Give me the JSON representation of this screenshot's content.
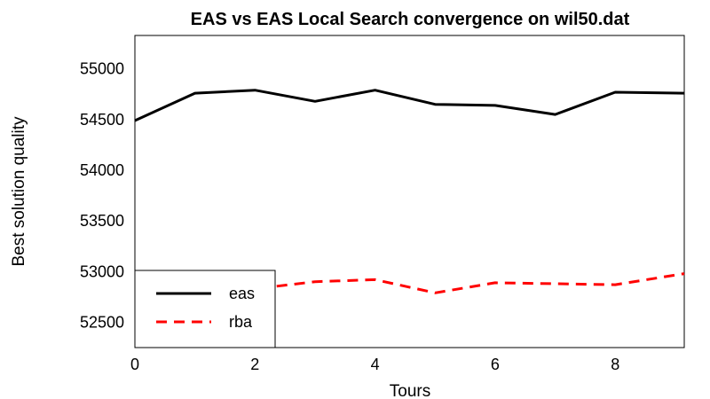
{
  "chart_data": {
    "type": "line",
    "title": "EAS vs EAS Local Search convergence on wil50.dat",
    "xlabel": "Tours",
    "ylabel": "Best solution quality",
    "xlim": [
      0,
      9.15
    ],
    "ylim": [
      52250,
      55330
    ],
    "xticks": [
      "0",
      "2",
      "4",
      "6",
      "8"
    ],
    "yticks": [
      "52500",
      "53000",
      "53500",
      "54000",
      "54500",
      "55000"
    ],
    "x": [
      0,
      1,
      2,
      3,
      4,
      5,
      6,
      7,
      8,
      9.15
    ],
    "series": [
      {
        "name": "eas",
        "color": "#000000",
        "style": "solid",
        "values": [
          54490,
          54760,
          54790,
          54680,
          54790,
          54650,
          54640,
          54550,
          54770,
          54760
        ]
      },
      {
        "name": "rba",
        "color": "#ff0000",
        "style": "dashed",
        "values": [
          52830,
          52810,
          52830,
          52900,
          52920,
          52790,
          52890,
          52880,
          52870,
          52980
        ]
      }
    ],
    "grid": false,
    "legend_position": "bottom-left"
  }
}
